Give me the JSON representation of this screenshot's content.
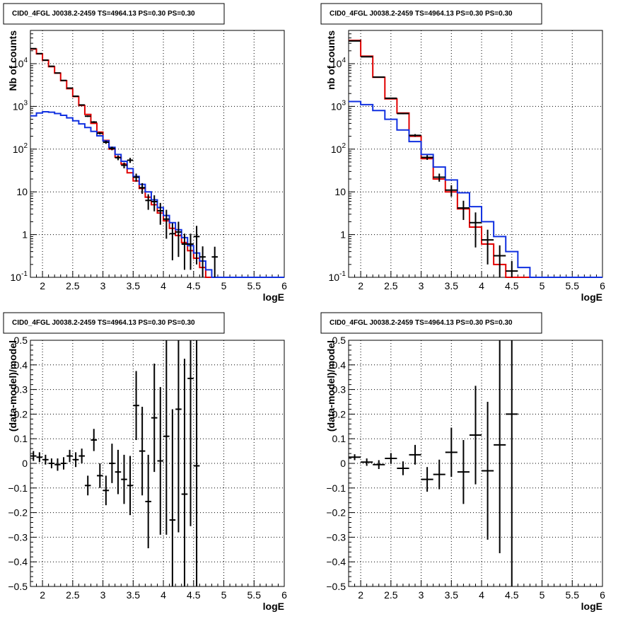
{
  "colors": {
    "data": "#000000",
    "total_model": "#e00000",
    "source_model": "#1030e0"
  },
  "chart_data": [
    {
      "type": "line",
      "title": "CID0_4FGL J0038.2-2459 TS=4964.13 PS=0.30 PS=0.30",
      "xlabel": "logE",
      "ylabel": "Nb of counts",
      "xlim": [
        1.8,
        6.0
      ],
      "ylim": [
        0.1,
        60000
      ],
      "yscale": "log",
      "grid": true,
      "x_ticks": [
        "2",
        "2.5",
        "3",
        "3.5",
        "4",
        "4.5",
        "5",
        "5.5",
        "6"
      ],
      "y_ticks": [
        "10^-1",
        "1",
        "10",
        "10^2",
        "10^3",
        "10^4"
      ],
      "bin_edges": [
        1.8,
        1.9,
        2.0,
        2.1,
        2.2,
        2.3,
        2.4,
        2.5,
        2.6,
        2.7,
        2.8,
        2.9,
        3.0,
        3.1,
        3.2,
        3.3,
        3.4,
        3.5,
        3.6,
        3.7,
        3.8,
        3.9,
        4.0,
        4.1,
        4.2,
        4.3,
        4.4,
        4.5,
        4.6,
        4.7,
        4.8,
        4.9,
        5.0,
        5.1,
        5.2,
        5.3,
        5.4,
        5.5,
        5.6,
        5.7,
        5.8,
        5.9,
        6.0
      ],
      "series": [
        {
          "role": "total_model",
          "values": [
            22000,
            17000,
            12000,
            8500,
            6000,
            4000,
            2600,
            1700,
            1050,
            650,
            400,
            250,
            160,
            100,
            65,
            45,
            28,
            18,
            12,
            7.5,
            5,
            3.2,
            2.1,
            1.4,
            0.95,
            0.65,
            0.42,
            0.28,
            0.17,
            0.1,
            0.1,
            0.1,
            0.1,
            0.1,
            0.1,
            0.1,
            0.1,
            0.1,
            0.1,
            0.1,
            0.1,
            0.1
          ]
        },
        {
          "role": "source_model",
          "values": [
            600,
            700,
            750,
            730,
            680,
            620,
            540,
            460,
            390,
            320,
            260,
            205,
            155,
            110,
            75,
            52,
            35,
            23,
            15,
            10,
            6.5,
            4.3,
            2.8,
            1.9,
            1.3,
            0.85,
            0.55,
            0.37,
            0.24,
            0.15,
            0.1,
            0.1,
            0.1,
            0.1,
            0.1,
            0.1,
            0.1,
            0.1,
            0.1,
            0.1,
            0.1,
            0.1
          ]
        }
      ],
      "points": [
        {
          "x": 1.85,
          "y": 22500,
          "dy": 150
        },
        {
          "x": 1.95,
          "y": 17200,
          "dy": 130
        },
        {
          "x": 2.05,
          "y": 12100,
          "dy": 110
        },
        {
          "x": 2.15,
          "y": 8700,
          "dy": 93
        },
        {
          "x": 2.25,
          "y": 6050,
          "dy": 78
        },
        {
          "x": 2.35,
          "y": 4050,
          "dy": 64
        },
        {
          "x": 2.45,
          "y": 2680,
          "dy": 52
        },
        {
          "x": 2.55,
          "y": 1730,
          "dy": 42
        },
        {
          "x": 2.65,
          "y": 1080,
          "dy": 33
        },
        {
          "x": 2.75,
          "y": 590,
          "dy": 24
        },
        {
          "x": 2.85,
          "y": 430,
          "dy": 21
        },
        {
          "x": 2.95,
          "y": 235,
          "dy": 15
        },
        {
          "x": 3.05,
          "y": 145,
          "dy": 12
        },
        {
          "x": 3.15,
          "y": 104,
          "dy": 10
        },
        {
          "x": 3.25,
          "y": 63,
          "dy": 8
        },
        {
          "x": 3.35,
          "y": 42,
          "dy": 6.5
        },
        {
          "x": 3.45,
          "y": 55,
          "dy": 7.4
        },
        {
          "x": 3.55,
          "y": 22,
          "dy": 4.7
        },
        {
          "x": 3.65,
          "y": 12.5,
          "dy": 3.5
        },
        {
          "x": 3.75,
          "y": 6.3,
          "dy": 2.5
        },
        {
          "x": 3.85,
          "y": 5.9,
          "dy": 2.4
        },
        {
          "x": 3.95,
          "y": 3.6,
          "dy": 1.9
        },
        {
          "x": 4.05,
          "y": 2.3,
          "dy": 1.5
        },
        {
          "x": 4.15,
          "y": 1.05,
          "dy": 0.8
        },
        {
          "x": 4.25,
          "y": 1.15,
          "dy": 0.85
        },
        {
          "x": 4.35,
          "y": 0.6,
          "dy": 0.45
        },
        {
          "x": 4.45,
          "y": 0.6,
          "dy": 0.45
        },
        {
          "x": 4.55,
          "y": 0.9,
          "dy": 0.7
        },
        {
          "x": 4.65,
          "y": 0.3,
          "dy": 0.23
        },
        {
          "x": 4.85,
          "y": 0.3,
          "dy": 0.22
        }
      ]
    },
    {
      "type": "line",
      "title": "CID0_4FGL J0038.2-2459 TS=4964.13 PS=0.30 PS=0.30",
      "xlabel": "logE",
      "ylabel": "nb of counts",
      "xlim": [
        1.8,
        6.0
      ],
      "ylim": [
        0.1,
        60000
      ],
      "yscale": "log",
      "grid": true,
      "x_ticks": [
        "2",
        "2.5",
        "3",
        "3.5",
        "4",
        "4.5",
        "5",
        "5.5",
        "6"
      ],
      "y_ticks": [
        "10^-1",
        "1",
        "10",
        "10^2",
        "10^3",
        "10^4"
      ],
      "bin_edges": [
        1.8,
        2.0,
        2.2,
        2.4,
        2.6,
        2.8,
        3.0,
        3.2,
        3.4,
        3.6,
        3.8,
        4.0,
        4.2,
        4.4,
        4.6,
        4.8,
        5.0,
        5.2,
        5.4,
        5.6,
        5.8,
        6.0
      ],
      "series": [
        {
          "role": "total_model",
          "values": [
            35000,
            15000,
            4800,
            1500,
            700,
            200,
            60,
            20,
            10,
            4,
            1.5,
            0.6,
            0.2,
            0.1,
            0.1,
            0.1,
            0.1,
            0.1,
            0.1,
            0.1,
            0.1
          ]
        },
        {
          "role": "source_model",
          "values": [
            1300,
            1100,
            800,
            500,
            280,
            150,
            75,
            38,
            19,
            9.5,
            4.5,
            2,
            0.9,
            0.4,
            0.17,
            0.1,
            0.1,
            0.1,
            0.1,
            0.1,
            0.1
          ]
        }
      ],
      "points": [
        {
          "x": 1.9,
          "y": 34000,
          "dy": 190
        },
        {
          "x": 2.1,
          "y": 14500,
          "dy": 120
        },
        {
          "x": 2.3,
          "y": 4850,
          "dy": 70
        },
        {
          "x": 2.5,
          "y": 1550,
          "dy": 39
        },
        {
          "x": 2.7,
          "y": 680,
          "dy": 26
        },
        {
          "x": 2.9,
          "y": 210,
          "dy": 14.5
        },
        {
          "x": 3.1,
          "y": 64,
          "dy": 8
        },
        {
          "x": 3.3,
          "y": 22,
          "dy": 4.7
        },
        {
          "x": 3.5,
          "y": 11,
          "dy": 3.3
        },
        {
          "x": 3.7,
          "y": 4.2,
          "dy": 2
        },
        {
          "x": 3.9,
          "y": 1.9,
          "dy": 1.4
        },
        {
          "x": 4.1,
          "y": 0.75,
          "dy": 0.55
        },
        {
          "x": 4.3,
          "y": 0.32,
          "dy": 0.24
        },
        {
          "x": 4.5,
          "y": 0.14,
          "dy": 0.1
        }
      ]
    },
    {
      "type": "scatter",
      "title": "CID0_4FGL J0038.2-2459 TS=4964.13 PS=0.30 PS=0.30",
      "xlabel": "logE",
      "ylabel": "(data-model)/model",
      "xlim": [
        1.8,
        6.0
      ],
      "ylim": [
        -0.5,
        0.5
      ],
      "grid": true,
      "x_ticks": [
        "2",
        "2.5",
        "3",
        "3.5",
        "4",
        "4.5",
        "5",
        "5.5",
        "6"
      ],
      "y_ticks": [
        "−0.5",
        "−0.4",
        "−0.3",
        "−0.2",
        "−0.1",
        "0",
        "0.1",
        "0.2",
        "0.3",
        "0.4",
        "0.5"
      ],
      "points": [
        {
          "x": 1.85,
          "y": 0.03,
          "dy": 0.02
        },
        {
          "x": 1.95,
          "y": 0.025,
          "dy": 0.02
        },
        {
          "x": 2.05,
          "y": 0.015,
          "dy": 0.02
        },
        {
          "x": 2.15,
          "y": 0.0,
          "dy": 0.02
        },
        {
          "x": 2.25,
          "y": -0.005,
          "dy": 0.025
        },
        {
          "x": 2.35,
          "y": 0.0,
          "dy": 0.025
        },
        {
          "x": 2.45,
          "y": 0.03,
          "dy": 0.025
        },
        {
          "x": 2.55,
          "y": 0.015,
          "dy": 0.03
        },
        {
          "x": 2.65,
          "y": 0.03,
          "dy": 0.03
        },
        {
          "x": 2.75,
          "y": -0.09,
          "dy": 0.04
        },
        {
          "x": 2.85,
          "y": 0.095,
          "dy": 0.045
        },
        {
          "x": 2.95,
          "y": -0.05,
          "dy": 0.05
        },
        {
          "x": 3.05,
          "y": -0.11,
          "dy": 0.06
        },
        {
          "x": 3.15,
          "y": 0.0,
          "dy": 0.08
        },
        {
          "x": 3.25,
          "y": -0.035,
          "dy": 0.09
        },
        {
          "x": 3.35,
          "y": -0.065,
          "dy": 0.1
        },
        {
          "x": 3.45,
          "y": -0.09,
          "dy": 0.12
        },
        {
          "x": 3.55,
          "y": 0.235,
          "dy": 0.14
        },
        {
          "x": 3.65,
          "y": 0.05,
          "dy": 0.18
        },
        {
          "x": 3.75,
          "y": -0.155,
          "dy": 0.19
        },
        {
          "x": 3.85,
          "y": 0.185,
          "dy": 0.22
        },
        {
          "x": 3.95,
          "y": 0.01,
          "dy": 0.3
        },
        {
          "x": 4.05,
          "y": 0.11,
          "dy": 0.4
        },
        {
          "x": 4.15,
          "y": -0.23,
          "dy": 0.45
        },
        {
          "x": 4.25,
          "y": 0.22,
          "dy": 0.5
        },
        {
          "x": 4.35,
          "y": -0.125,
          "dy": 0.55
        },
        {
          "x": 4.45,
          "y": 0.345,
          "dy": 0.6
        },
        {
          "x": 4.55,
          "y": -0.01,
          "dy": 0.7
        }
      ]
    },
    {
      "type": "scatter",
      "title": "CID0_4FGL J0038.2-2459 TS=4964.13 PS=0.30 PS=0.30",
      "xlabel": "logE",
      "ylabel": "(data-model)/model",
      "xlim": [
        1.8,
        6.0
      ],
      "ylim": [
        -0.5,
        0.5
      ],
      "grid": true,
      "x_ticks": [
        "2",
        "2.5",
        "3",
        "3.5",
        "4",
        "4.5",
        "5",
        "5.5",
        "6"
      ],
      "y_ticks": [
        "−0.5",
        "−0.4",
        "−0.3",
        "−0.2",
        "−0.1",
        "0",
        "0.1",
        "0.2",
        "0.3",
        "0.4",
        "0.5"
      ],
      "points": [
        {
          "x": 1.9,
          "y": 0.025,
          "dy": 0.012
        },
        {
          "x": 2.1,
          "y": 0.005,
          "dy": 0.015
        },
        {
          "x": 2.3,
          "y": -0.005,
          "dy": 0.018
        },
        {
          "x": 2.5,
          "y": 0.02,
          "dy": 0.022
        },
        {
          "x": 2.7,
          "y": -0.02,
          "dy": 0.028
        },
        {
          "x": 2.9,
          "y": 0.035,
          "dy": 0.04
        },
        {
          "x": 3.1,
          "y": -0.065,
          "dy": 0.05
        },
        {
          "x": 3.3,
          "y": -0.045,
          "dy": 0.06
        },
        {
          "x": 3.5,
          "y": 0.045,
          "dy": 0.1
        },
        {
          "x": 3.7,
          "y": -0.035,
          "dy": 0.13
        },
        {
          "x": 3.9,
          "y": 0.115,
          "dy": 0.2
        },
        {
          "x": 4.1,
          "y": -0.03,
          "dy": 0.28
        },
        {
          "x": 4.3,
          "y": 0.075,
          "dy": 0.44
        },
        {
          "x": 4.5,
          "y": 0.2,
          "dy": 0.7
        }
      ]
    }
  ]
}
